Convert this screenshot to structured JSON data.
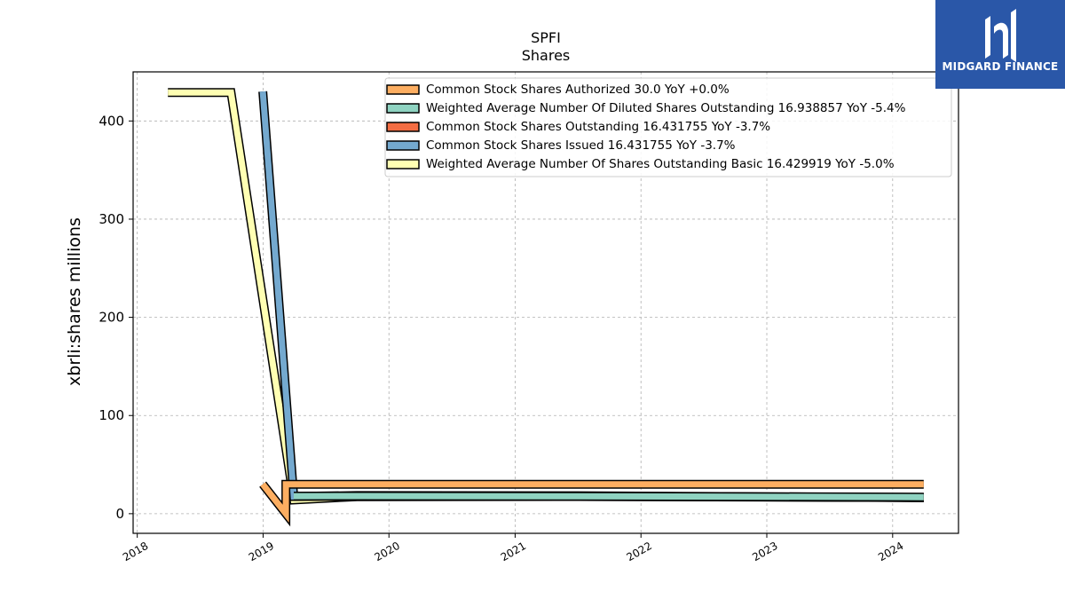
{
  "chart_data": {
    "type": "line",
    "title": "SPFI",
    "subtitle": "Shares",
    "ylabel": "xbrli:shares millions",
    "xlabel": "",
    "xlim": [
      "2017-12-20",
      "2024-07-10"
    ],
    "ylim": [
      -20,
      450
    ],
    "yticks": [
      0,
      100,
      200,
      300,
      400
    ],
    "xticks": [
      "2018",
      "2019",
      "2020",
      "2021",
      "2022",
      "2023",
      "2024"
    ],
    "grid": true,
    "legend_position": "top-right",
    "series": [
      {
        "name": "Common Stock Shares Authorized  30.0 YoY +0.0%",
        "color": "#fdae61",
        "points": [
          [
            "2018-12-31",
            30
          ],
          [
            "2019-03-08",
            0
          ],
          [
            "2019-03-08",
            30
          ],
          [
            "2024-03-31",
            30
          ]
        ]
      },
      {
        "name": "Weighted Average Number Of Diluted Shares Outstanding  16.938857 YoY -5.4%",
        "color": "#8fd3c1",
        "points": [
          [
            "2019-03-31",
            17.9
          ],
          [
            "2019-09-30",
            18.0
          ],
          [
            "2021-06-30",
            17.8
          ],
          [
            "2024-03-31",
            16.9
          ]
        ]
      },
      {
        "name": "Common Stock Shares Outstanding  16.431755 YoY -3.7%",
        "color": "#f46d43",
        "points": [
          [
            "2019-03-31",
            17.6
          ],
          [
            "2021-06-30",
            17.5
          ],
          [
            "2024-03-31",
            16.4
          ]
        ]
      },
      {
        "name": "Common Stock Shares Issued  16.431755 YoY -3.7%",
        "color": "#74a9cf",
        "points": [
          [
            "2018-12-31",
            430
          ],
          [
            "2019-03-31",
            17.6
          ],
          [
            "2019-09-30",
            18.5
          ],
          [
            "2021-06-30",
            18.3
          ],
          [
            "2024-03-31",
            16.4
          ]
        ]
      },
      {
        "name": "Weighted Average Number Of Shares Outstanding Basic  16.429919 YoY -5.0%",
        "color": "#ffffb3",
        "points": [
          [
            "2018-03-31",
            429
          ],
          [
            "2018-09-30",
            429
          ],
          [
            "2019-03-31",
            14
          ],
          [
            "2019-09-30",
            17.3
          ],
          [
            "2021-06-30",
            17.5
          ],
          [
            "2022-06-30",
            17.3
          ],
          [
            "2024-03-31",
            16.4
          ]
        ]
      }
    ]
  },
  "logo": {
    "text": "MIDGARD FINANCE",
    "background": "#2a57a8"
  }
}
